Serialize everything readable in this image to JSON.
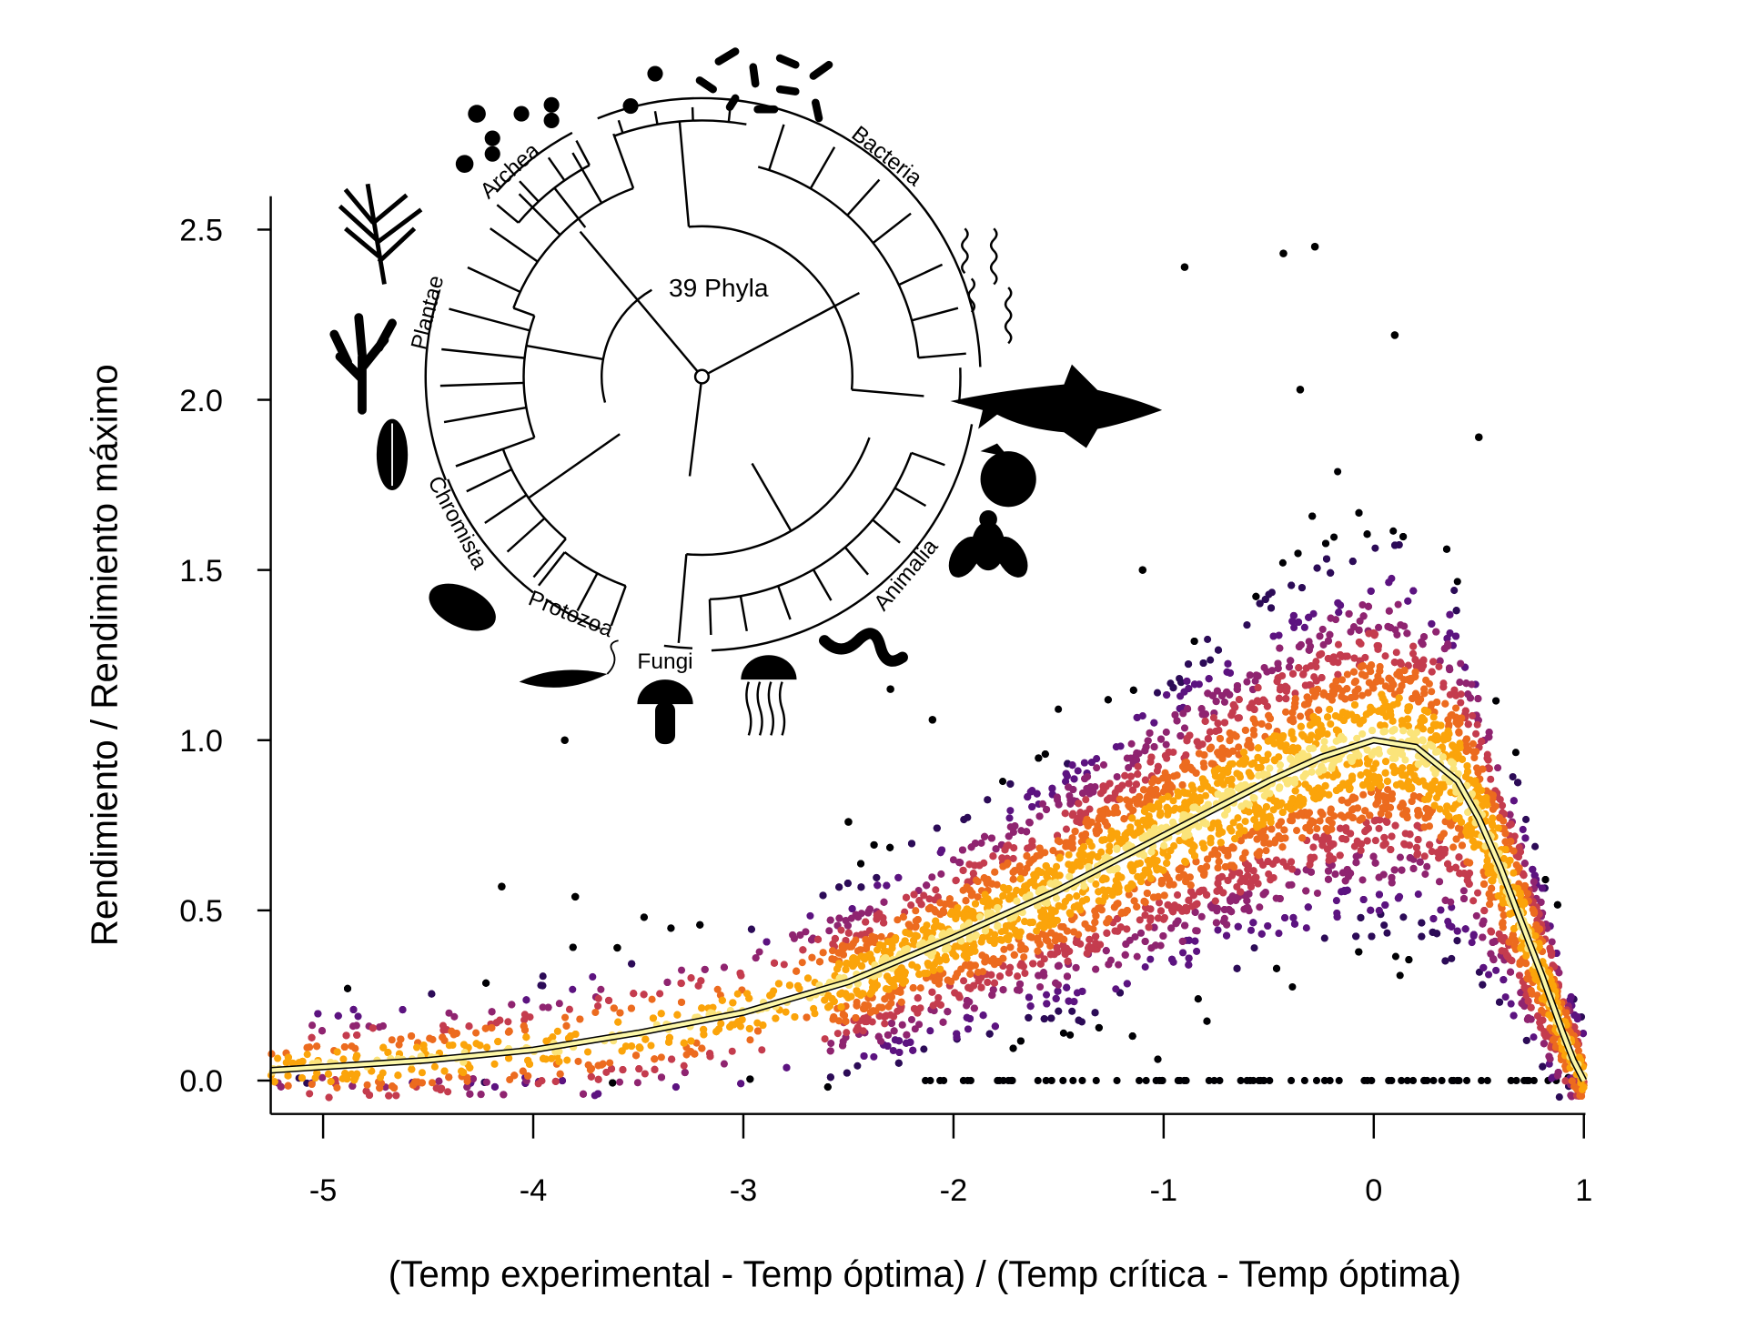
{
  "chart_data": {
    "type": "scatter",
    "title": "",
    "xlabel": "(Temp experimental - Temp óptima) / (Temp crítica - Temp óptima)",
    "ylabel": "Rendimiento / Rendimiento máximo",
    "xlim": [
      -5.25,
      1.0
    ],
    "ylim": [
      -0.1,
      2.6
    ],
    "x_ticks": [
      {
        "v": -5,
        "label": "-5"
      },
      {
        "v": -4,
        "label": "-4"
      },
      {
        "v": -3,
        "label": "-3"
      },
      {
        "v": -2,
        "label": "-2"
      },
      {
        "v": -1,
        "label": "-1"
      },
      {
        "v": 0,
        "label": "0"
      },
      {
        "v": 1,
        "label": "1"
      }
    ],
    "y_ticks": [
      {
        "v": 0,
        "label": "0.0"
      },
      {
        "v": 0.5,
        "label": "0.5"
      },
      {
        "v": 1,
        "label": "1.0"
      },
      {
        "v": 1.5,
        "label": "1.5"
      },
      {
        "v": 2,
        "label": "2.0"
      },
      {
        "v": 2.5,
        "label": "2.5"
      }
    ],
    "grid": false,
    "fit_curve": {
      "x": [
        -5.25,
        -5,
        -4.5,
        -4,
        -3.5,
        -3,
        -2.5,
        -2,
        -1.5,
        -1,
        -0.5,
        -0.25,
        0,
        0.2,
        0.4,
        0.5,
        0.6,
        0.7,
        0.8,
        0.9,
        0.95,
        1.0
      ],
      "y": [
        0.03,
        0.04,
        0.06,
        0.09,
        0.14,
        0.2,
        0.29,
        0.42,
        0.56,
        0.72,
        0.88,
        0.95,
        1.0,
        0.98,
        0.88,
        0.77,
        0.63,
        0.47,
        0.31,
        0.14,
        0.06,
        0.0
      ],
      "color": "#fcf7a8"
    },
    "density_colors": [
      "#000004",
      "#2c0b57",
      "#5c1380",
      "#8f2470",
      "#c43c4e",
      "#ec6b1f",
      "#fba40a",
      "#fbe47a"
    ],
    "outlier_points": [
      [
        -0.9,
        2.39
      ],
      [
        -0.43,
        2.43
      ],
      [
        -0.28,
        2.45
      ],
      [
        0.1,
        2.19
      ],
      [
        -0.35,
        2.03
      ],
      [
        0.5,
        1.89
      ],
      [
        -3.85,
        1.0
      ],
      [
        -4.15,
        0.57
      ],
      [
        -3.8,
        0.54
      ],
      [
        -2.3,
        1.15
      ],
      [
        -2.1,
        1.06
      ],
      [
        -2.5,
        0.76
      ],
      [
        -3.6,
        0.39
      ],
      [
        -1.1,
        1.5
      ]
    ],
    "inset": {
      "center_label": "39 Phyla",
      "clades": [
        "Archea",
        "Bacteria",
        "Plantae",
        "Chromista",
        "Protozoa",
        "Fungi",
        "Animalia"
      ]
    }
  }
}
